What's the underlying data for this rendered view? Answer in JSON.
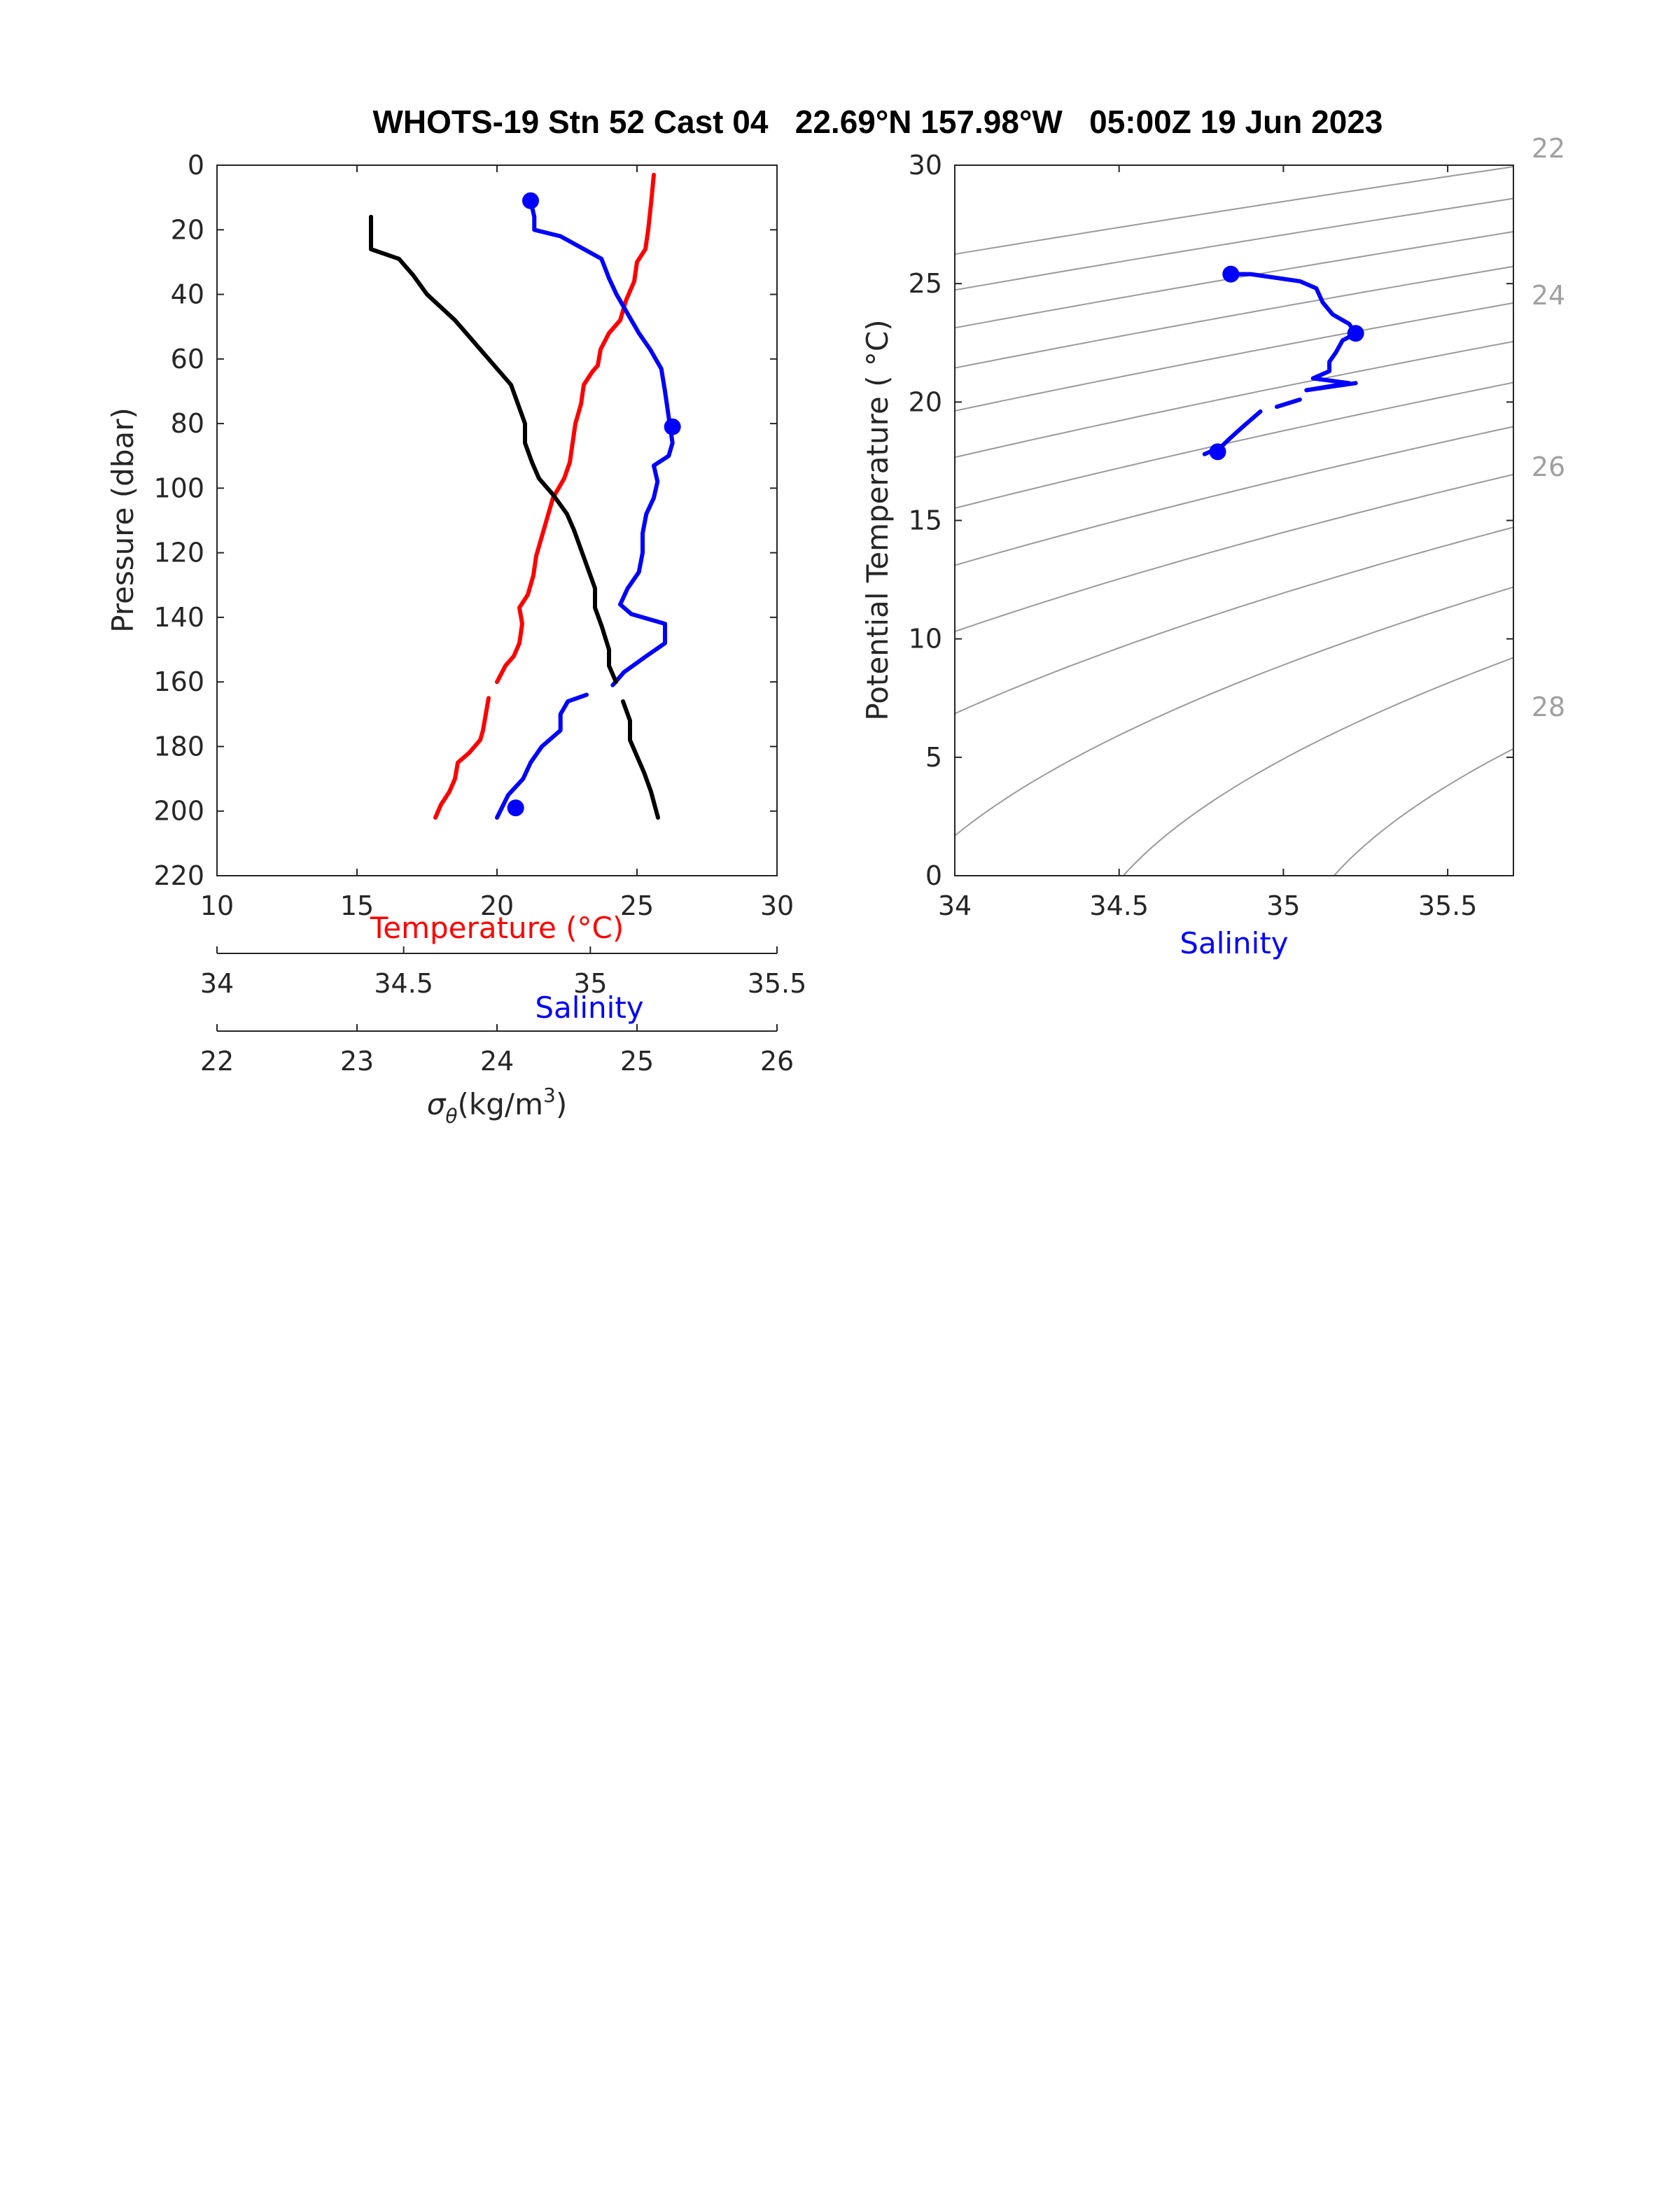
{
  "chart_data": [
    {
      "type": "line",
      "title": "WHOTS-19 Stn 52 Cast 04   22.69°N 157.98°W   05:00Z 19 Jun 2023",
      "ylabel": "Pressure (dbar)",
      "ylim": [
        0,
        220
      ],
      "yticks": [
        "0",
        "20",
        "40",
        "60",
        "80",
        "100",
        "120",
        "140",
        "160",
        "180",
        "200",
        "220"
      ],
      "axes": [
        {
          "label": "Temperature (°C)",
          "range": [
            10,
            30
          ],
          "ticks": [
            "10",
            "15",
            "20",
            "25",
            "30"
          ],
          "color": "#ff0000"
        },
        {
          "label": "Salinity",
          "range": [
            34,
            35.5
          ],
          "ticks": [
            "34",
            "34.5",
            "35",
            "35.5"
          ],
          "color": "#0000ff"
        },
        {
          "label": "σθ(kg/m3)",
          "label_main": "σ",
          "label_sub": "θ",
          "label_rest": "(kg/m",
          "label_sup": "3",
          "label_end": ")",
          "range": [
            22,
            26
          ],
          "ticks": [
            "22",
            "23",
            "24",
            "25",
            "26"
          ],
          "color": "#000000"
        }
      ],
      "series": [
        {
          "color": "#ff0000",
          "axis": 0,
          "segments": [
            [
              [
                25.6,
                3
              ],
              [
                25.5,
                12
              ],
              [
                25.4,
                20
              ],
              [
                25.3,
                26
              ],
              [
                25.0,
                30
              ],
              [
                24.9,
                36
              ],
              [
                24.6,
                42
              ],
              [
                24.4,
                48
              ],
              [
                24.0,
                52
              ],
              [
                23.7,
                57
              ],
              [
                23.6,
                62
              ],
              [
                23.4,
                64
              ],
              [
                23.1,
                68
              ],
              [
                23.0,
                74
              ],
              [
                22.8,
                80
              ],
              [
                22.7,
                86
              ],
              [
                22.6,
                92
              ],
              [
                22.4,
                97
              ],
              [
                22.0,
                103
              ],
              [
                21.8,
                109
              ],
              [
                21.6,
                115
              ],
              [
                21.4,
                121
              ],
              [
                21.3,
                127
              ],
              [
                21.1,
                133
              ],
              [
                20.8,
                137
              ],
              [
                20.9,
                142
              ],
              [
                20.8,
                148
              ],
              [
                20.6,
                152
              ],
              [
                20.3,
                155
              ],
              [
                20.0,
                160
              ]
            ],
            [
              [
                19.7,
                165
              ],
              [
                19.6,
                170
              ],
              [
                19.5,
                175
              ],
              [
                19.4,
                178
              ],
              [
                19.0,
                182
              ],
              [
                18.6,
                185
              ],
              [
                18.5,
                190
              ],
              [
                18.3,
                194
              ],
              [
                18.0,
                198
              ],
              [
                17.8,
                202
              ]
            ]
          ]
        },
        {
          "color": "#0000ff",
          "axis": 1,
          "segments": [
            [
              [
                34.84,
                11
              ],
              [
                34.85,
                16
              ],
              [
                34.85,
                20
              ],
              [
                34.92,
                22
              ],
              [
                35.03,
                29
              ],
              [
                35.05,
                35
              ],
              [
                35.07,
                40
              ],
              [
                35.1,
                46
              ],
              [
                35.13,
                52
              ],
              [
                35.16,
                57
              ],
              [
                35.19,
                63
              ],
              [
                35.2,
                70
              ],
              [
                35.21,
                78
              ],
              [
                35.22,
                86
              ],
              [
                35.21,
                90
              ],
              [
                35.17,
                93
              ],
              [
                35.18,
                98
              ],
              [
                35.17,
                103
              ],
              [
                35.15,
                108
              ],
              [
                35.14,
                114
              ],
              [
                35.14,
                120
              ],
              [
                35.13,
                126
              ],
              [
                35.1,
                131
              ],
              [
                35.08,
                136
              ],
              [
                35.11,
                139
              ],
              [
                35.2,
                142
              ],
              [
                35.2,
                148
              ],
              [
                35.15,
                152
              ],
              [
                35.09,
                157
              ],
              [
                35.06,
                161
              ]
            ],
            [
              [
                34.99,
                164
              ],
              [
                34.94,
                166
              ],
              [
                34.92,
                170
              ],
              [
                34.92,
                175
              ],
              [
                34.87,
                180
              ],
              [
                34.84,
                185
              ],
              [
                34.82,
                190
              ],
              [
                34.78,
                195
              ],
              [
                34.75,
                202
              ]
            ]
          ]
        },
        {
          "color": "#000000",
          "axis": 2,
          "segments": [
            [
              [
                23.1,
                16
              ],
              [
                23.1,
                26
              ],
              [
                23.3,
                29
              ],
              [
                23.4,
                34
              ],
              [
                23.5,
                40
              ],
              [
                23.6,
                44
              ],
              [
                23.7,
                48
              ],
              [
                23.8,
                53
              ],
              [
                23.9,
                58
              ],
              [
                24.0,
                63
              ],
              [
                24.1,
                68
              ],
              [
                24.15,
                74
              ],
              [
                24.2,
                80
              ],
              [
                24.2,
                86
              ],
              [
                24.25,
                92
              ],
              [
                24.3,
                97
              ],
              [
                24.4,
                102
              ],
              [
                24.5,
                108
              ],
              [
                24.55,
                113
              ],
              [
                24.6,
                119
              ],
              [
                24.65,
                125
              ],
              [
                24.7,
                131
              ],
              [
                24.7,
                137
              ],
              [
                24.75,
                143
              ],
              [
                24.8,
                150
              ],
              [
                24.8,
                155
              ],
              [
                24.85,
                160
              ]
            ],
            [
              [
                24.9,
                166
              ],
              [
                24.95,
                172
              ],
              [
                24.95,
                178
              ],
              [
                25.0,
                183
              ],
              [
                25.05,
                188
              ],
              [
                25.1,
                194
              ],
              [
                25.15,
                202
              ]
            ]
          ]
        }
      ],
      "markers": [
        {
          "color": "#0000ff",
          "axis": 1,
          "points": [
            [
              34.84,
              11
            ],
            [
              35.22,
              81
            ],
            [
              34.8,
              199
            ]
          ]
        }
      ]
    },
    {
      "type": "line",
      "xlabel": "Salinity",
      "ylabel": "Potential Temperature ( °C)",
      "xlim": [
        34,
        35.7
      ],
      "ylim": [
        0,
        30
      ],
      "xticks": [
        "34",
        "34.5",
        "35",
        "35.5"
      ],
      "yticks": [
        "0",
        "5",
        "10",
        "15",
        "20",
        "25",
        "30"
      ],
      "isopycnal_labels": [
        "22",
        "24",
        "26",
        "28"
      ],
      "series": [
        {
          "color": "#0000ff",
          "segments": [
            [
              [
                34.84,
                25.4
              ],
              [
                34.9,
                25.4
              ],
              [
                34.95,
                25.3
              ],
              [
                35.05,
                25.1
              ],
              [
                35.1,
                24.8
              ],
              [
                35.12,
                24.2
              ],
              [
                35.15,
                23.7
              ],
              [
                35.2,
                23.3
              ],
              [
                35.22,
                22.9
              ],
              [
                35.18,
                22.6
              ],
              [
                35.16,
                22.1
              ],
              [
                35.14,
                21.7
              ],
              [
                35.14,
                21.3
              ],
              [
                35.09,
                21.0
              ],
              [
                35.2,
                20.8
              ],
              [
                35.07,
                20.5
              ],
              [
                35.22,
                20.8
              ]
            ],
            [
              [
                35.05,
                20.1
              ],
              [
                34.98,
                19.8
              ]
            ],
            [
              [
                34.93,
                19.6
              ],
              [
                34.88,
                19.0
              ],
              [
                34.84,
                18.5
              ],
              [
                34.81,
                18.1
              ],
              [
                34.76,
                17.8
              ]
            ]
          ]
        }
      ],
      "markers": [
        {
          "color": "#0000ff",
          "points": [
            [
              34.84,
              25.4
            ],
            [
              35.22,
              22.9
            ],
            [
              34.8,
              17.9
            ]
          ]
        }
      ]
    }
  ]
}
